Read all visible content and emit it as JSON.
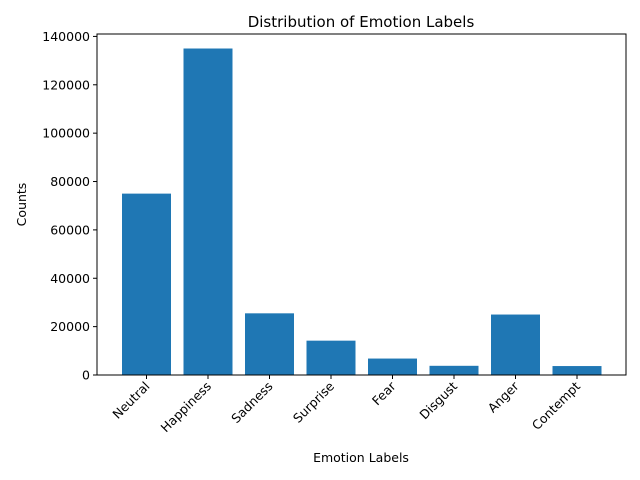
{
  "chart_data": {
    "type": "bar",
    "title": "Distribution of Emotion Labels",
    "xlabel": "Emotion Labels",
    "ylabel": "Counts",
    "categories": [
      "Neutral",
      "Happiness",
      "Sadness",
      "Surprise",
      "Fear",
      "Disgust",
      "Anger",
      "Contempt"
    ],
    "values": [
      75000,
      135000,
      25500,
      14200,
      6800,
      3800,
      25000,
      3700
    ],
    "ylim": [
      0,
      141000
    ],
    "yticks": [
      0,
      20000,
      40000,
      60000,
      80000,
      100000,
      120000,
      140000
    ],
    "ytick_labels": [
      "0",
      "20000",
      "40000",
      "60000",
      "80000",
      "100000",
      "120000",
      "140000"
    ],
    "bar_color": "#1f77b4",
    "xtick_rotation_deg": 45,
    "grid": false,
    "legend": "none"
  }
}
